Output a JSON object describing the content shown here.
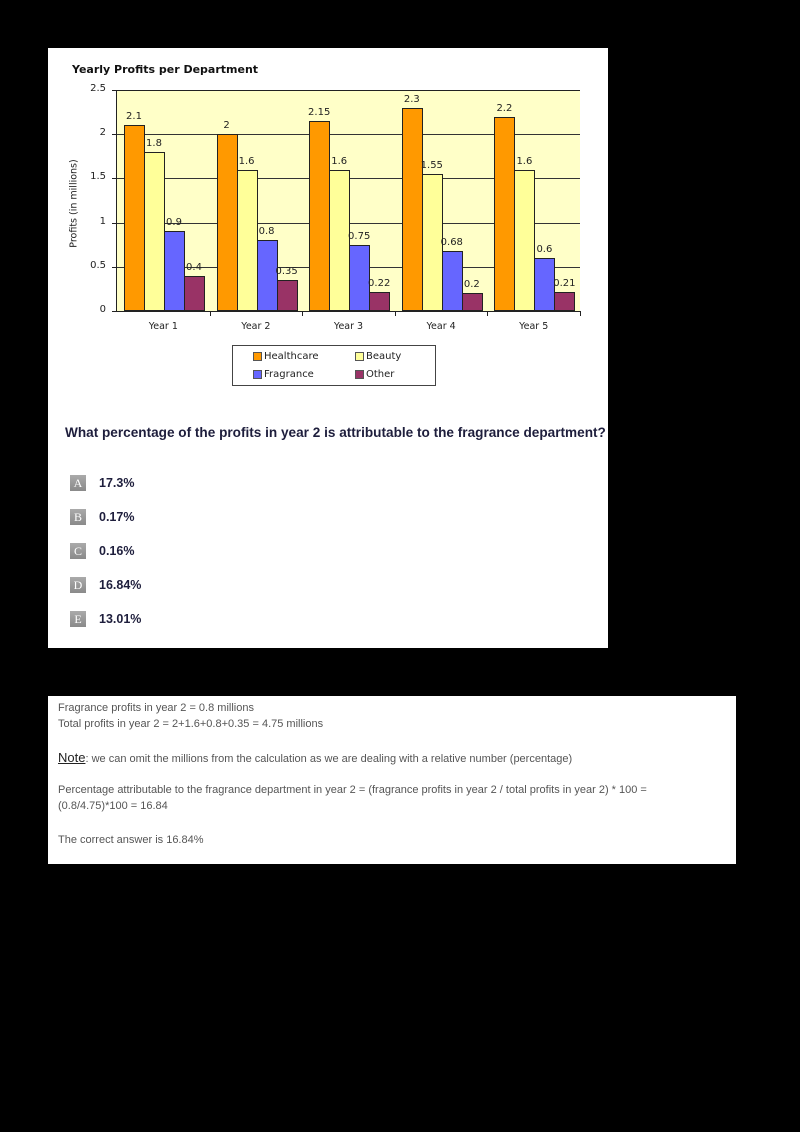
{
  "chart_data": {
    "type": "bar",
    "title": "Yearly Profits per Department",
    "xlabel": "",
    "ylabel": "Profits (in millions)",
    "ylim": [
      0,
      2.5
    ],
    "yticks": [
      "0",
      "0.5",
      "1",
      "1.5",
      "2",
      "2.5"
    ],
    "grid": true,
    "legend_position": "bottom",
    "categories": [
      "Year 1",
      "Year 2",
      "Year 3",
      "Year 4",
      "Year 5"
    ],
    "series": [
      {
        "name": "Healthcare",
        "color": "#ff9900",
        "values": [
          2.1,
          2,
          2.15,
          2.3,
          2.2
        ],
        "labels": [
          "2.1",
          "2",
          "2.15",
          "2.3",
          "2.2"
        ]
      },
      {
        "name": "Beauty",
        "color": "#ffff99",
        "values": [
          1.8,
          1.6,
          1.6,
          1.55,
          1.6
        ],
        "labels": [
          "1.8",
          "1.6",
          "1.6",
          "1.55",
          "1.6"
        ]
      },
      {
        "name": "Fragrance",
        "color": "#6666ff",
        "values": [
          0.9,
          0.8,
          0.75,
          0.68,
          0.6
        ],
        "labels": [
          "0.9",
          "0.8",
          "0.75",
          "0.68",
          "0.6"
        ]
      },
      {
        "name": "Other",
        "color": "#993366",
        "values": [
          0.4,
          0.35,
          0.22,
          0.2,
          0.21
        ],
        "labels": [
          "0.4",
          "0.35",
          "0.22",
          "0.2",
          "0.21"
        ]
      }
    ],
    "plot_background": "#ffffc8"
  },
  "question": {
    "text": "What percentage of the profits in year 2 is attributable to the fragrance department?",
    "options": [
      {
        "letter": "A",
        "text": "17.3%"
      },
      {
        "letter": "B",
        "text": "0.17%"
      },
      {
        "letter": "C",
        "text": "0.16%"
      },
      {
        "letter": "D",
        "text": "16.84%"
      },
      {
        "letter": "E",
        "text": "13.01%"
      }
    ]
  },
  "explanation": {
    "line1": "Fragrance profits in year 2 = 0.8 millions",
    "line2": "Total profits in year 2 = 2+1.6+0.8+0.35 = 4.75 millions",
    "note_label": "Note",
    "note_text": ": we can omit the millions from the calculation as we are dealing with a relative number (percentage)",
    "line3": "Percentage attributable to the fragrance department in year 2 = (fragrance profits in year 2 / total profits in year 2) * 100 =",
    "line4": "(0.8/4.75)*100 = 16.84",
    "line5": "The correct answer is 16.84%"
  }
}
